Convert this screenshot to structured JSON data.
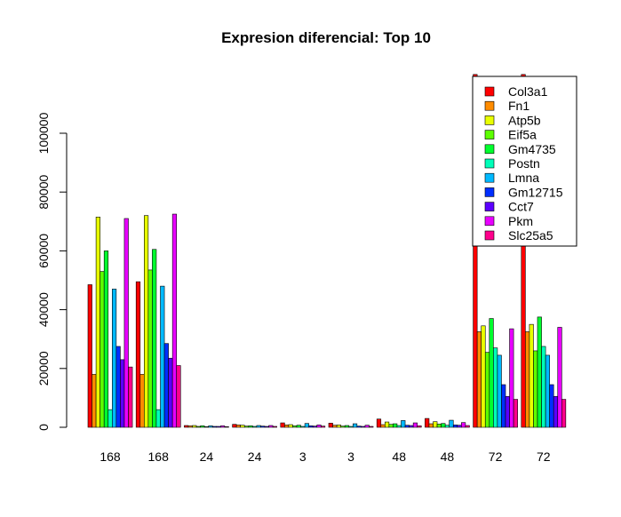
{
  "chart_data": {
    "type": "bar",
    "title": "Expresion diferencial: Top 10",
    "xlabel": "",
    "ylabel": "",
    "ylim": [
      0,
      120000
    ],
    "yticks": [
      0,
      20000,
      40000,
      60000,
      80000,
      100000
    ],
    "yticks_labels": [
      "0",
      "20000",
      "40000",
      "60000",
      "80000",
      "100000"
    ],
    "grid": false,
    "legend_position": "top-right",
    "categories": [
      "168",
      "168",
      "24",
      "24",
      "3",
      "3",
      "48",
      "48",
      "72",
      "72"
    ],
    "series": [
      {
        "name": "Col3a1",
        "color": "#FF0000",
        "values": [
          48500,
          49500,
          600,
          1000,
          1500,
          1400,
          2800,
          3000,
          120000,
          120000
        ]
      },
      {
        "name": "Fn1",
        "color": "#FF8C00",
        "values": [
          18000,
          18000,
          500,
          800,
          800,
          700,
          900,
          1200,
          32500,
          32500
        ]
      },
      {
        "name": "Atp5b",
        "color": "#E8FF00",
        "values": [
          71500,
          72000,
          600,
          700,
          900,
          800,
          1800,
          1900,
          34500,
          35000
        ]
      },
      {
        "name": "Eif5a",
        "color": "#5CFF00",
        "values": [
          53000,
          53500,
          300,
          400,
          500,
          400,
          1000,
          1100,
          25500,
          26000
        ]
      },
      {
        "name": "Gm4735",
        "color": "#00FF2E",
        "values": [
          60000,
          60500,
          500,
          500,
          700,
          600,
          1200,
          1300,
          37000,
          37500
        ]
      },
      {
        "name": "Postn",
        "color": "#00FFB9",
        "values": [
          6000,
          6000,
          200,
          300,
          300,
          300,
          600,
          700,
          27000,
          27500
        ]
      },
      {
        "name": "Lmna",
        "color": "#00B9FF",
        "values": [
          47000,
          48000,
          500,
          600,
          1300,
          1200,
          2300,
          2400,
          24500,
          24500
        ]
      },
      {
        "name": "Gm12715",
        "color": "#002EFF",
        "values": [
          27500,
          28500,
          300,
          400,
          500,
          400,
          700,
          800,
          14500,
          14500
        ]
      },
      {
        "name": "Cct7",
        "color": "#5C00FF",
        "values": [
          23000,
          23500,
          300,
          300,
          400,
          300,
          600,
          700,
          10500,
          10500
        ]
      },
      {
        "name": "Pkm",
        "color": "#E800FF",
        "values": [
          71000,
          72500,
          500,
          600,
          800,
          700,
          1500,
          1600,
          33500,
          34000
        ]
      },
      {
        "name": "Slc25a5",
        "color": "#FF008C",
        "values": [
          20500,
          21000,
          200,
          300,
          400,
          300,
          500,
          600,
          9500,
          9500
        ]
      }
    ]
  }
}
